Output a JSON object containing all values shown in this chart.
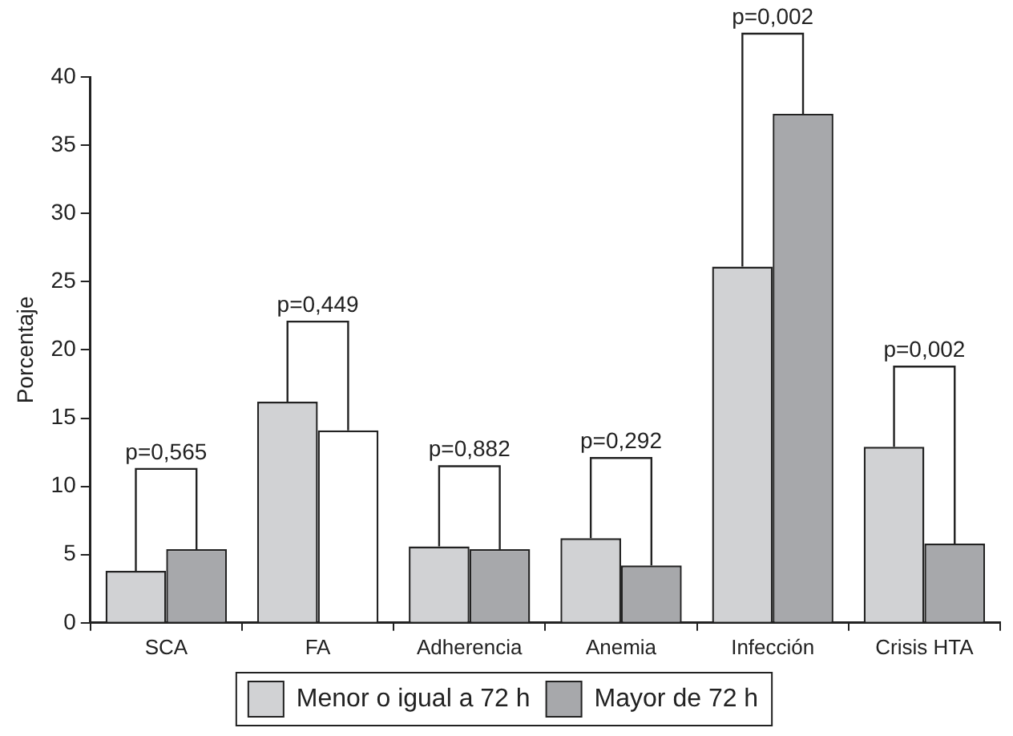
{
  "chart_data": {
    "type": "bar",
    "ylabel": "Porcentaje",
    "categories": [
      "SCA",
      "FA",
      "Adherencia",
      "Anemia",
      "Infección",
      "Crisis HTA"
    ],
    "series": [
      {
        "name": "Menor o igual a 72 h",
        "color": "#d1d2d4",
        "values": [
          3.8,
          16.2,
          5.6,
          6.2,
          26.1,
          12.9
        ]
      },
      {
        "name": "Mayor de 72 h",
        "color": "#a7a8ab",
        "colors": [
          "#a7a8ab",
          "#ffffff",
          "#a7a8ab",
          "#a7a8ab",
          "#a7a8ab",
          "#a7a8ab"
        ],
        "values": [
          5.4,
          14.1,
          5.4,
          4.2,
          37.3,
          5.8
        ]
      }
    ],
    "ylim": [
      0,
      40
    ],
    "yticks": [
      0,
      5,
      10,
      15,
      20,
      25,
      30,
      35,
      40
    ],
    "grid": false,
    "legend": "bottom",
    "annotations": [
      "p=0,565",
      "p=0,449",
      "p=0,882",
      "p=0,292",
      "p=0,002",
      "p=0,002"
    ]
  }
}
